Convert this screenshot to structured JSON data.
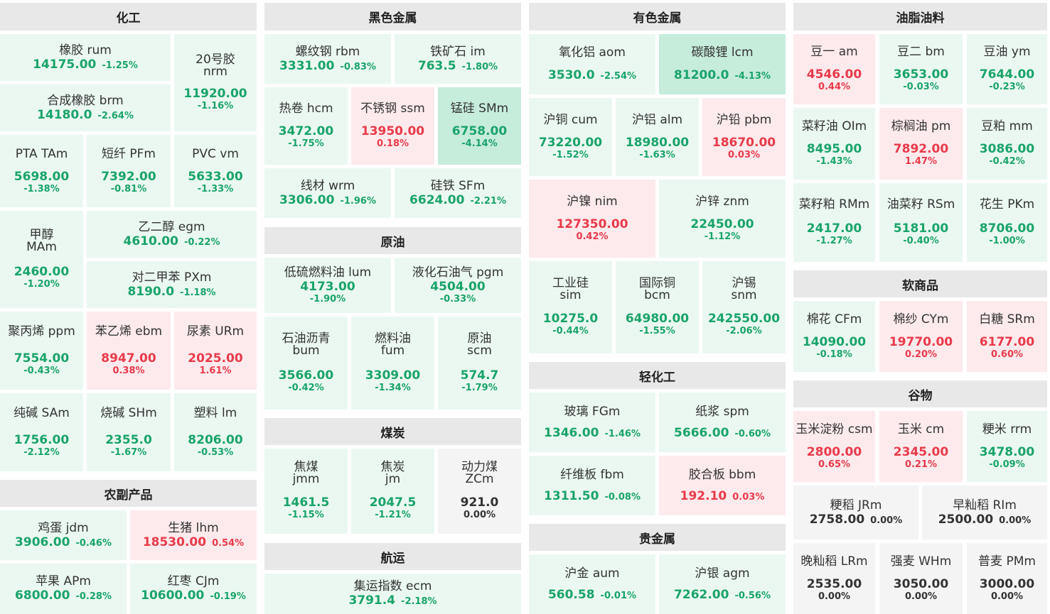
{
  "sections": {
    "chem": "化工",
    "ferrous": "黑色金属",
    "nonferrous": "有色金属",
    "oils": "油脂油料",
    "agri": "农副产品",
    "crude": "原油",
    "coal": "煤炭",
    "shipping": "航运",
    "light": "轻化工",
    "precious": "贵金属",
    "soft": "软商品",
    "grain": "谷物"
  },
  "tiles": {
    "rum": {
      "name": "橡胶  rum",
      "price": "14175.00",
      "change": "-1.25%"
    },
    "nrm": {
      "name1": "20号胶",
      "name2": "nrm",
      "price": "11920.00",
      "change": "-1.16%"
    },
    "brm": {
      "name": "合成橡胶  brm",
      "price": "14180.0",
      "change": "-2.64%"
    },
    "TAm": {
      "name": "PTA  TAm",
      "price": "5698.00",
      "change": "-1.38%"
    },
    "PFm": {
      "name": "短纤  PFm",
      "price": "7392.00",
      "change": "-0.81%"
    },
    "vm": {
      "name": "PVC  vm",
      "price": "5633.00",
      "change": "-1.33%"
    },
    "MAm": {
      "name1": "甲醇",
      "name2": "MAm",
      "price": "2460.00",
      "change": "-1.20%"
    },
    "egm": {
      "name": "乙二醇  egm",
      "price": "4610.00",
      "change": "-0.22%"
    },
    "PXm": {
      "name": "对二甲苯  PXm",
      "price": "8190.0",
      "change": "-1.18%"
    },
    "ppm": {
      "name": "聚丙烯  ppm",
      "price": "7554.00",
      "change": "-0.43%"
    },
    "ebm": {
      "name": "苯乙烯  ebm",
      "price": "8947.00",
      "change": "0.38%"
    },
    "URm": {
      "name": "尿素  URm",
      "price": "2025.00",
      "change": "1.61%"
    },
    "SAm": {
      "name": "纯碱  SAm",
      "price": "1756.00",
      "change": "-2.12%"
    },
    "SHm": {
      "name": "烧碱  SHm",
      "price": "2355.0",
      "change": "-1.67%"
    },
    "lm": {
      "name": "塑料  lm",
      "price": "8206.00",
      "change": "-0.53%"
    },
    "jdm": {
      "name": "鸡蛋  jdm",
      "price": "3906.00",
      "change": "-0.46%"
    },
    "lhm": {
      "name": "生猪  lhm",
      "price": "18530.00",
      "change": "0.54%"
    },
    "APm": {
      "name": "苹果  APm",
      "price": "6800.00",
      "change": "-0.28%"
    },
    "CJm": {
      "name": "红枣  CJm",
      "price": "10600.00",
      "change": "-0.19%"
    },
    "rbm": {
      "name": "螺纹钢  rbm",
      "price": "3331.00",
      "change": "-0.83%"
    },
    "im": {
      "name": "铁矿石  im",
      "price": "763.5",
      "change": "-1.80%"
    },
    "hcm": {
      "name": "热卷  hcm",
      "price": "3472.00",
      "change": "-1.75%"
    },
    "ssm": {
      "name": "不锈钢  ssm",
      "price": "13950.00",
      "change": "0.18%"
    },
    "SMm": {
      "name": "锰硅  SMm",
      "price": "6758.00",
      "change": "-4.14%"
    },
    "wrm": {
      "name": "线材  wrm",
      "price": "3306.00",
      "change": "-1.96%"
    },
    "SFm": {
      "name": "硅铁  SFm",
      "price": "6624.00",
      "change": "-2.21%"
    },
    "lum": {
      "name": "低硫燃料油  lum",
      "price": "4173.00",
      "change": "-1.90%"
    },
    "pgm": {
      "name": "液化石油气  pgm",
      "price": "4504.00",
      "change": "-0.33%"
    },
    "bum": {
      "name1": "石油沥青",
      "name2": "bum",
      "price": "3566.00",
      "change": "-0.42%"
    },
    "fum": {
      "name1": "燃料油",
      "name2": "fum",
      "price": "3309.00",
      "change": "-1.34%"
    },
    "scm": {
      "name1": "原油",
      "name2": "scm",
      "price": "574.7",
      "change": "-1.79%"
    },
    "jmm": {
      "name1": "焦煤",
      "name2": "jmm",
      "price": "1461.5",
      "change": "-1.15%"
    },
    "jm": {
      "name1": "焦炭",
      "name2": "jm",
      "price": "2047.5",
      "change": "-1.21%"
    },
    "ZCm": {
      "name1": "动力煤",
      "name2": "ZCm",
      "price": "921.0",
      "change": "0.00%"
    },
    "ecm": {
      "name": "集运指数  ecm",
      "price": "3791.4",
      "change": "-2.18%"
    },
    "aom": {
      "name": "氧化铝  aom",
      "price": "3530.0",
      "change": "-2.54%"
    },
    "lcm": {
      "name": "碳酸锂  lcm",
      "price": "81200.0",
      "change": "-4.13%"
    },
    "cum": {
      "name": "沪铜  cum",
      "price": "73220.00",
      "change": "-1.52%"
    },
    "alm": {
      "name": "沪铝  alm",
      "price": "18980.00",
      "change": "-1.63%"
    },
    "pbm": {
      "name": "沪铅  pbm",
      "price": "18670.00",
      "change": "0.03%"
    },
    "nim": {
      "name": "沪镍  nim",
      "price": "127350.00",
      "change": "0.42%"
    },
    "znm": {
      "name": "沪锌  znm",
      "price": "22450.00",
      "change": "-1.12%"
    },
    "sim": {
      "name1": "工业硅",
      "name2": "sim",
      "price": "10275.0",
      "change": "-0.44%"
    },
    "bcm": {
      "name1": "国际铜",
      "name2": "bcm",
      "price": "64980.00",
      "change": "-1.55%"
    },
    "snm": {
      "name1": "沪锡",
      "name2": "snm",
      "price": "242550.00",
      "change": "-2.06%"
    },
    "FGm": {
      "name": "玻璃  FGm",
      "price": "1346.00",
      "change": "-1.46%"
    },
    "spm": {
      "name": "纸浆  spm",
      "price": "5666.00",
      "change": "-0.60%"
    },
    "fbm": {
      "name": "纤维板  fbm",
      "price": "1311.50",
      "change": "-0.08%"
    },
    "bbm": {
      "name": "胶合板  bbm",
      "price": "192.10",
      "change": "0.03%"
    },
    "aum": {
      "name": "沪金  aum",
      "price": "560.58",
      "change": "-0.01%"
    },
    "agm": {
      "name": "沪银  agm",
      "price": "7262.00",
      "change": "-0.56%"
    },
    "am": {
      "name": "豆一  am",
      "price": "4546.00",
      "change": "0.44%"
    },
    "bm": {
      "name": "豆二  bm",
      "price": "3653.00",
      "change": "-0.03%"
    },
    "ym": {
      "name": "豆油  ym",
      "price": "7644.00",
      "change": "-0.23%"
    },
    "OIm": {
      "name": "菜籽油  OIm",
      "price": "8495.00",
      "change": "-1.43%"
    },
    "pm": {
      "name": "棕榈油  pm",
      "price": "7892.00",
      "change": "1.47%"
    },
    "mm": {
      "name": "豆粕  mm",
      "price": "3086.00",
      "change": "-0.42%"
    },
    "RMm": {
      "name": "菜籽粕  RMm",
      "price": "2417.00",
      "change": "-1.27%"
    },
    "RSm": {
      "name": "油菜籽  RSm",
      "price": "5181.00",
      "change": "-0.40%"
    },
    "PKm": {
      "name": "花生  PKm",
      "price": "8706.00",
      "change": "-1.00%"
    },
    "CFm": {
      "name": "棉花  CFm",
      "price": "14090.00",
      "change": "-0.18%"
    },
    "CYm": {
      "name": "棉纱  CYm",
      "price": "19770.00",
      "change": "0.20%"
    },
    "SRm": {
      "name": "白糖  SRm",
      "price": "6177.00",
      "change": "0.60%"
    },
    "csm": {
      "name": "玉米淀粉  csm",
      "price": "2800.00",
      "change": "0.65%"
    },
    "cm": {
      "name": "玉米  cm",
      "price": "2345.00",
      "change": "0.21%"
    },
    "rrm": {
      "name": "粳米  rrm",
      "price": "3478.00",
      "change": "-0.09%"
    },
    "JRm": {
      "name": "粳稻  JRm",
      "price": "2758.00",
      "change": "0.00%"
    },
    "RIm": {
      "name": "早籼稻  RIm",
      "price": "2500.00",
      "change": "0.00%"
    },
    "LRm": {
      "name": "晚籼稻  LRm",
      "price": "2535.00",
      "change": "0.00%"
    },
    "WHm": {
      "name": "强麦  WHm",
      "price": "3050.00",
      "change": "0.00%"
    },
    "PMm": {
      "name": "普麦  PMm",
      "price": "3000.00",
      "change": "0.00%"
    }
  },
  "colors": {
    "down": "#1aa36a",
    "up": "#e83a4b",
    "flat": "#333333",
    "down_bg": "#eaf8f1",
    "up_bg": "#fdeaec",
    "strong_bg": "#c6ecdc",
    "header_bg": "#e8e8e8"
  }
}
